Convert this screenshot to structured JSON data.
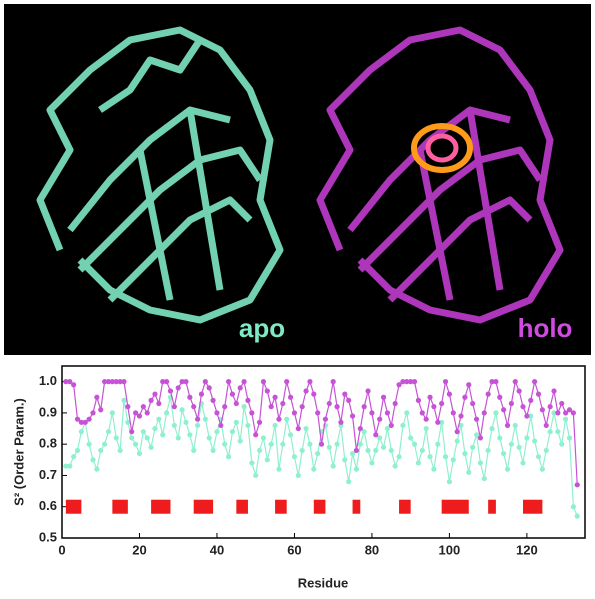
{
  "panel": {
    "left_label": "apo",
    "right_label": "holo"
  },
  "chart_data": {
    "type": "line",
    "xlabel": "Residue",
    "ylabel": "S² (Order Param.)",
    "xlim": [
      0,
      135
    ],
    "ylim": [
      0.5,
      1.05
    ],
    "xticks": [
      0,
      20,
      40,
      60,
      80,
      100,
      120
    ],
    "yticks": [
      0.5,
      0.6,
      0.7,
      0.8,
      0.9,
      {
        "value": 1,
        "label": "1.0"
      }
    ],
    "x": [
      1,
      2,
      3,
      4,
      5,
      6,
      7,
      8,
      9,
      10,
      11,
      12,
      13,
      14,
      15,
      16,
      17,
      18,
      19,
      20,
      21,
      22,
      23,
      24,
      25,
      26,
      27,
      28,
      29,
      30,
      31,
      32,
      33,
      34,
      35,
      36,
      37,
      38,
      39,
      40,
      41,
      42,
      43,
      44,
      45,
      46,
      47,
      48,
      49,
      50,
      51,
      52,
      53,
      54,
      55,
      56,
      57,
      58,
      59,
      60,
      61,
      62,
      63,
      64,
      65,
      66,
      67,
      68,
      69,
      70,
      71,
      72,
      73,
      74,
      75,
      76,
      77,
      78,
      79,
      80,
      81,
      82,
      83,
      84,
      85,
      86,
      87,
      88,
      89,
      90,
      91,
      92,
      93,
      94,
      95,
      96,
      97,
      98,
      99,
      100,
      101,
      102,
      103,
      104,
      105,
      106,
      107,
      108,
      109,
      110,
      111,
      112,
      113,
      114,
      115,
      116,
      117,
      118,
      119,
      120,
      121,
      122,
      123,
      124,
      125,
      126,
      127,
      128,
      129,
      130,
      131,
      132,
      133
    ],
    "series": [
      {
        "color": "#8ff0d0",
        "values": [
          0.73,
          0.73,
          0.76,
          0.78,
          0.84,
          0.87,
          0.8,
          0.75,
          0.72,
          0.78,
          0.8,
          0.84,
          0.9,
          0.82,
          0.78,
          0.94,
          0.87,
          0.82,
          0.8,
          0.77,
          0.84,
          0.82,
          0.79,
          0.85,
          0.88,
          0.83,
          0.9,
          0.95,
          0.86,
          0.82,
          0.91,
          0.87,
          0.83,
          0.78,
          0.86,
          0.93,
          0.88,
          0.82,
          0.78,
          0.84,
          0.88,
          0.8,
          0.76,
          0.84,
          0.87,
          0.81,
          0.92,
          0.86,
          0.74,
          0.7,
          0.78,
          0.82,
          0.75,
          0.8,
          0.86,
          0.72,
          0.8,
          0.88,
          0.83,
          0.76,
          0.7,
          0.78,
          0.85,
          0.8,
          0.72,
          0.77,
          0.84,
          0.86,
          0.79,
          0.73,
          0.8,
          0.86,
          0.75,
          0.68,
          0.77,
          0.72,
          0.8,
          0.84,
          0.78,
          0.74,
          0.78,
          0.82,
          0.79,
          0.85,
          0.78,
          0.73,
          0.76,
          0.86,
          0.9,
          0.82,
          0.8,
          0.74,
          0.78,
          0.85,
          0.76,
          0.72,
          0.8,
          0.87,
          0.76,
          0.68,
          0.75,
          0.81,
          0.86,
          0.77,
          0.71,
          0.79,
          0.83,
          0.74,
          0.69,
          0.78,
          0.85,
          0.9,
          0.82,
          0.77,
          0.72,
          0.8,
          0.86,
          0.79,
          0.74,
          0.82,
          0.89,
          0.81,
          0.76,
          0.72,
          0.78,
          0.84,
          0.9,
          0.84,
          0.8,
          0.88,
          0.82,
          0.6,
          0.57
        ]
      },
      {
        "color": "#c653d6",
        "values": [
          1.0,
          1.0,
          0.99,
          0.88,
          0.87,
          0.87,
          0.88,
          0.9,
          0.95,
          0.91,
          1.0,
          1.0,
          1.0,
          1.0,
          1.0,
          1.0,
          0.92,
          0.84,
          0.9,
          0.89,
          0.92,
          0.9,
          0.94,
          0.96,
          0.93,
          1.0,
          1.0,
          0.97,
          0.92,
          0.98,
          1.0,
          1.0,
          0.95,
          0.92,
          0.88,
          0.96,
          1.0,
          0.98,
          0.94,
          0.9,
          0.86,
          0.92,
          1.0,
          0.96,
          0.93,
          0.98,
          1.0,
          0.94,
          0.9,
          0.83,
          0.87,
          1.0,
          0.97,
          0.92,
          0.95,
          0.88,
          0.93,
          1.0,
          0.95,
          0.9,
          0.85,
          0.92,
          0.97,
          1.0,
          0.96,
          0.9,
          0.8,
          0.88,
          0.93,
          1.0,
          0.92,
          0.87,
          0.96,
          0.94,
          0.89,
          0.78,
          0.85,
          0.92,
          0.97,
          0.9,
          0.83,
          0.88,
          0.95,
          0.9,
          0.86,
          0.93,
          0.99,
          1.0,
          1.0,
          1.0,
          1.0,
          0.94,
          0.9,
          0.88,
          0.95,
          0.92,
          0.87,
          0.93,
          1.0,
          0.96,
          0.9,
          0.84,
          0.89,
          0.95,
          0.99,
          0.93,
          0.88,
          0.82,
          0.9,
          0.96,
          1.0,
          1.0,
          0.95,
          0.91,
          0.86,
          0.93,
          1.0,
          0.97,
          0.92,
          0.89,
          0.94,
          1.0,
          0.96,
          0.91,
          0.86,
          0.92,
          0.97,
          0.9,
          0.93,
          0.9,
          0.91,
          0.9,
          0.67
        ]
      }
    ],
    "segment_y": 0.6,
    "segment_color": "#ee1c1c",
    "segments": [
      {
        "start": 1,
        "end": 5
      },
      {
        "start": 13,
        "end": 17
      },
      {
        "start": 23,
        "end": 28
      },
      {
        "start": 34,
        "end": 39
      },
      {
        "start": 45,
        "end": 48
      },
      {
        "start": 55,
        "end": 58
      },
      {
        "start": 65,
        "end": 68
      },
      {
        "start": 75,
        "end": 77
      },
      {
        "start": 87,
        "end": 90
      },
      {
        "start": 98,
        "end": 105
      },
      {
        "start": 110,
        "end": 112
      },
      {
        "start": 119,
        "end": 124
      }
    ]
  }
}
